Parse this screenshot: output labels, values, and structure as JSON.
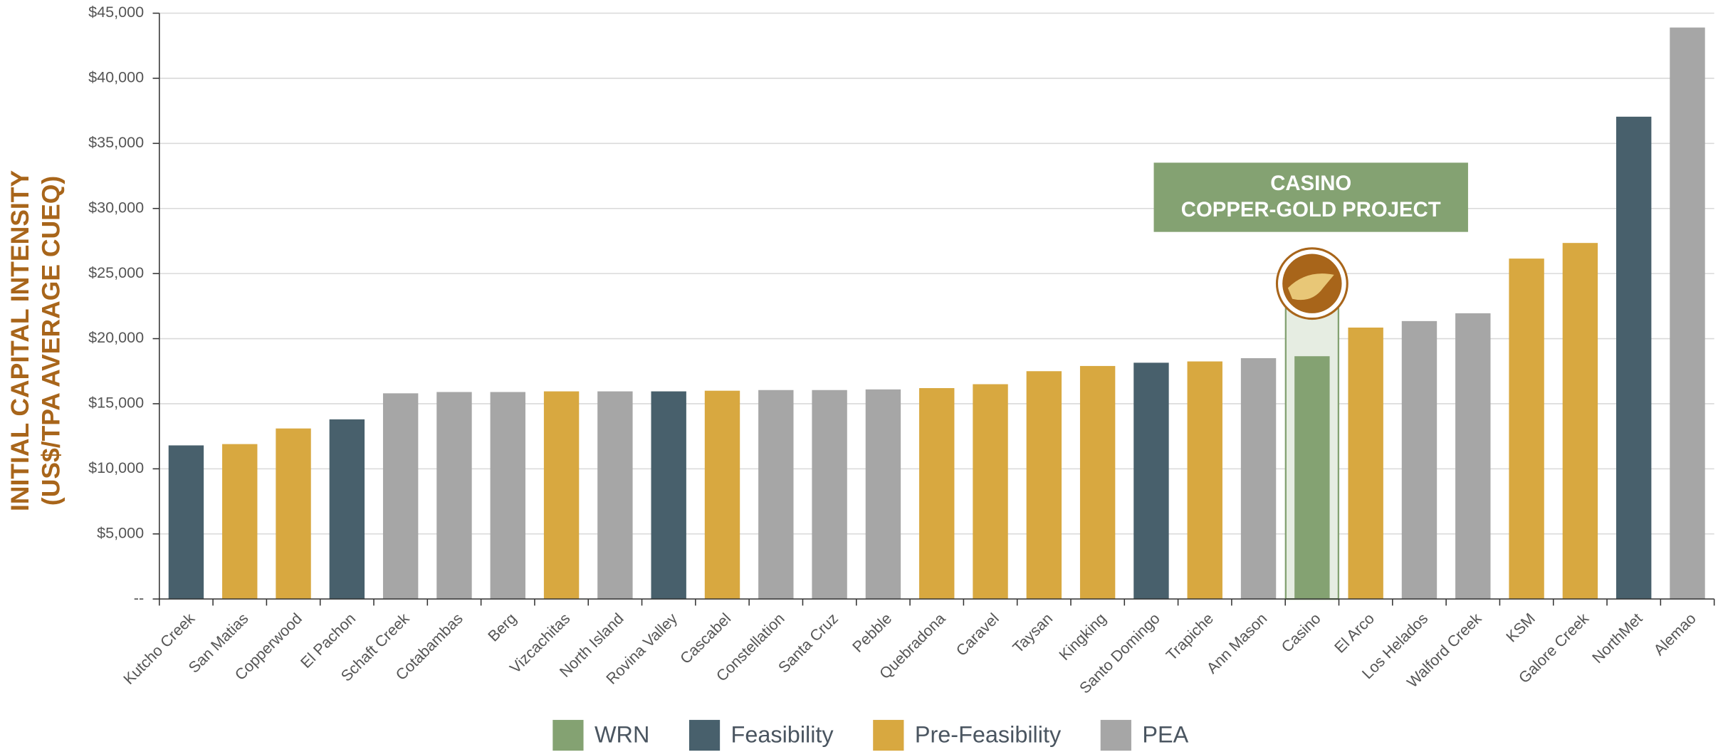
{
  "chart_data": {
    "type": "bar",
    "ylabel": [
      "INITIAL CAPITAL INTENSITY",
      "(US$/TPA AVERAGE CUEQ)"
    ],
    "annotation": [
      "CASINO",
      "COPPER-GOLD PROJECT"
    ],
    "categories": [
      "Kutcho Creek",
      "San Matias",
      "Copperwood",
      "El Pachon",
      "Schaft Creek",
      "Cotabambas",
      "Berg",
      "Vizcachitas",
      "North Island",
      "Rovina Valley",
      "Cascabel",
      "Constellation",
      "Santa Cruz",
      "Pebble",
      "Quebradona",
      "Caravel",
      "Taysan",
      "Kingking",
      "Santo Domingo",
      "Trapiche",
      "Ann Mason",
      "Casino",
      "El Arco",
      "Los Helados",
      "Walford Creek",
      "KSM",
      "Galore Creek",
      "NorthMet",
      "Alemao"
    ],
    "series": [
      {
        "name": "WRN",
        "color": "#84a272",
        "values": [
          null,
          null,
          null,
          null,
          null,
          null,
          null,
          null,
          null,
          null,
          null,
          null,
          null,
          null,
          null,
          null,
          null,
          null,
          null,
          null,
          null,
          18650,
          null,
          null,
          null,
          null,
          null,
          null,
          null
        ]
      },
      {
        "name": "Feasibility",
        "color": "#48606c",
        "values": [
          11800,
          null,
          null,
          13800,
          null,
          null,
          null,
          null,
          null,
          15950,
          null,
          null,
          null,
          null,
          null,
          null,
          null,
          null,
          18150,
          null,
          null,
          null,
          null,
          null,
          null,
          null,
          null,
          37050,
          null
        ]
      },
      {
        "name": "Pre-Feasibility",
        "color": "#d8a840",
        "values": [
          null,
          11900,
          13100,
          null,
          null,
          null,
          null,
          15950,
          null,
          null,
          16000,
          null,
          null,
          null,
          16200,
          16500,
          17500,
          17900,
          null,
          18250,
          null,
          null,
          20850,
          null,
          null,
          26150,
          27350,
          null,
          null
        ]
      },
      {
        "name": "PEA",
        "color": "#a6a6a6",
        "values": [
          null,
          null,
          null,
          null,
          15800,
          15900,
          15900,
          null,
          15950,
          null,
          null,
          16050,
          16050,
          16100,
          null,
          null,
          null,
          null,
          null,
          null,
          18500,
          null,
          null,
          21350,
          21950,
          null,
          null,
          null,
          43900
        ]
      }
    ],
    "ylim": [
      0,
      45000
    ],
    "yticks": [
      {
        "value": 0,
        "label": "--"
      },
      {
        "value": 5000,
        "label": "$5,000"
      },
      {
        "value": 10000,
        "label": "$10,000"
      },
      {
        "value": 15000,
        "label": "$15,000"
      },
      {
        "value": 20000,
        "label": "$20,000"
      },
      {
        "value": 25000,
        "label": "$25,000"
      },
      {
        "value": 30000,
        "label": "$30,000"
      },
      {
        "value": 35000,
        "label": "$35,000"
      },
      {
        "value": 40000,
        "label": "$40,000"
      },
      {
        "value": 45000,
        "label": "$45,000"
      }
    ],
    "grid": true
  }
}
